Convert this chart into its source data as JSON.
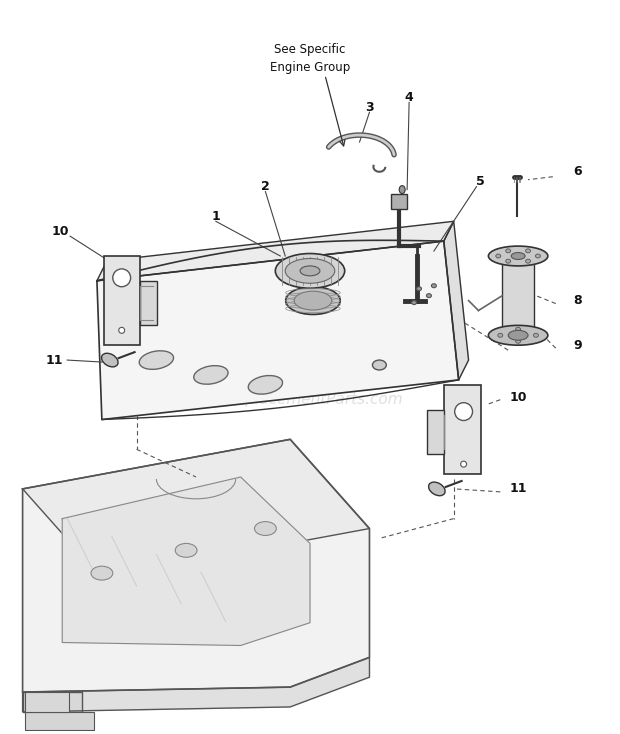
{
  "background_color": "#ffffff",
  "line_color": "#333333",
  "light_gray": "#aaaaaa",
  "mid_gray": "#888888",
  "watermark": "eReplacementParts.com",
  "watermark_color": "#cccccc",
  "watermark_fontsize": 11,
  "annotation_text": "See Specific\nEngine Group",
  "parts_label_fontsize": 9
}
